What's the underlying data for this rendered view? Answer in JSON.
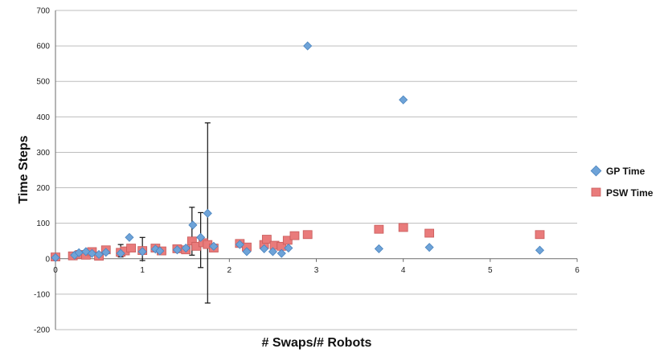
{
  "chart_data": {
    "type": "scatter",
    "title": "",
    "xlabel": "# Swaps/# Robots",
    "ylabel": "Time Steps",
    "xlim": [
      0,
      6
    ],
    "ylim": [
      -200,
      700
    ],
    "x_ticks": [
      "0",
      "1",
      "2",
      "3",
      "4",
      "5",
      "6"
    ],
    "y_ticks": [
      "-200",
      "-100",
      "0",
      "100",
      "200",
      "300",
      "400",
      "500",
      "600",
      "700"
    ],
    "grid": "horizontal",
    "legend_position": "right",
    "colors": {
      "gp": "#6ea3d8",
      "psw": "#e97b7b"
    },
    "series": [
      {
        "name": "GP Time",
        "marker": "diamond",
        "points": [
          [
            0.0,
            3
          ],
          [
            0.22,
            10
          ],
          [
            0.27,
            17
          ],
          [
            0.35,
            20
          ],
          [
            0.42,
            15
          ],
          [
            0.5,
            12
          ],
          [
            0.58,
            18
          ],
          [
            0.75,
            15
          ],
          [
            0.85,
            60
          ],
          [
            1.0,
            20
          ],
          [
            1.15,
            27
          ],
          [
            1.2,
            22
          ],
          [
            1.4,
            25
          ],
          [
            1.5,
            30
          ],
          [
            1.58,
            95
          ],
          [
            1.67,
            60
          ],
          [
            1.75,
            128
          ],
          [
            1.82,
            35
          ],
          [
            2.12,
            40
          ],
          [
            2.2,
            20
          ],
          [
            2.4,
            28
          ],
          [
            2.5,
            20
          ],
          [
            2.6,
            15
          ],
          [
            2.68,
            30
          ],
          [
            2.9,
            600
          ],
          [
            3.72,
            28
          ],
          [
            4.0,
            448
          ],
          [
            4.3,
            32
          ],
          [
            5.57,
            24
          ]
        ]
      },
      {
        "name": "PSW Time",
        "marker": "square",
        "points": [
          [
            0.0,
            5
          ],
          [
            0.2,
            8
          ],
          [
            0.28,
            12
          ],
          [
            0.35,
            10
          ],
          [
            0.42,
            20
          ],
          [
            0.5,
            7
          ],
          [
            0.58,
            25
          ],
          [
            0.75,
            18
          ],
          [
            0.8,
            22
          ],
          [
            0.87,
            30
          ],
          [
            1.0,
            23
          ],
          [
            1.15,
            30
          ],
          [
            1.22,
            22
          ],
          [
            1.4,
            28
          ],
          [
            1.5,
            25
          ],
          [
            1.57,
            50
          ],
          [
            1.62,
            35
          ],
          [
            1.7,
            45
          ],
          [
            1.75,
            40
          ],
          [
            1.82,
            30
          ],
          [
            2.12,
            43
          ],
          [
            2.2,
            33
          ],
          [
            2.4,
            40
          ],
          [
            2.43,
            55
          ],
          [
            2.52,
            38
          ],
          [
            2.6,
            35
          ],
          [
            2.67,
            52
          ],
          [
            2.75,
            65
          ],
          [
            2.9,
            68
          ],
          [
            3.72,
            83
          ],
          [
            4.0,
            88
          ],
          [
            4.3,
            72
          ],
          [
            5.57,
            68
          ]
        ]
      }
    ],
    "error_bars": [
      {
        "x": 0.75,
        "low": 5,
        "high": 40
      },
      {
        "x": 1.0,
        "low": -5,
        "high": 60
      },
      {
        "x": 1.57,
        "low": 10,
        "high": 145
      },
      {
        "x": 1.67,
        "low": -25,
        "high": 130
      },
      {
        "x": 1.75,
        "low": -125,
        "high": 383
      }
    ]
  }
}
